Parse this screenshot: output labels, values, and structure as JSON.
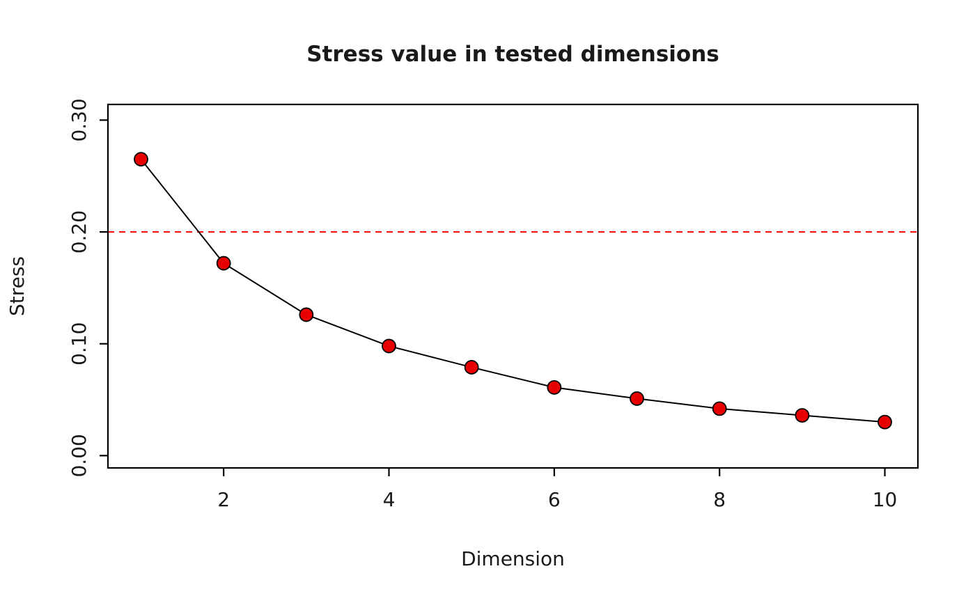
{
  "chart_data": {
    "type": "line",
    "title": "Stress value in tested dimensions",
    "xlabel": "Dimension",
    "ylabel": "Stress",
    "x": [
      1,
      2,
      3,
      4,
      5,
      6,
      7,
      8,
      9,
      10
    ],
    "values": [
      0.265,
      0.172,
      0.126,
      0.098,
      0.079,
      0.061,
      0.051,
      0.042,
      0.036,
      0.03
    ],
    "x_ticks": [
      2,
      4,
      6,
      8,
      10
    ],
    "x_tick_labels": [
      "2",
      "4",
      "6",
      "8",
      "10"
    ],
    "y_ticks": [
      0.0,
      0.1,
      0.2,
      0.3
    ],
    "y_tick_labels": [
      "0.00",
      "0.10",
      "0.20",
      "0.30"
    ],
    "xlim": [
      0.6,
      10.4
    ],
    "ylim": [
      -0.011,
      0.314
    ],
    "grid": false,
    "legend": null,
    "reference_line": {
      "y": 0.2,
      "color": "#ff0000",
      "style": "dashed"
    },
    "point_color": "#e60000",
    "point_outline": "#000000",
    "line_color": "#000000",
    "axis_color": "#000000"
  }
}
